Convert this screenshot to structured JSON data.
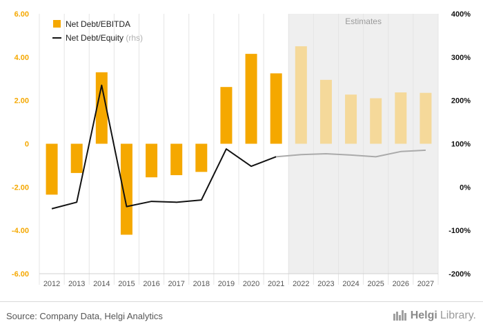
{
  "chart_data": {
    "type": "bar+line",
    "categories": [
      "2012",
      "2013",
      "2014",
      "2015",
      "2016",
      "2017",
      "2018",
      "2019",
      "2020",
      "2021",
      "2022",
      "2023",
      "2024",
      "2025",
      "2026",
      "2027"
    ],
    "estimates_from": "2022",
    "estimates_label": "Estimates",
    "series": [
      {
        "name": "Net Debt/EBITDA",
        "type": "bar",
        "axis": "left",
        "color": "#f5a800",
        "estimate_color": "#f5d99a",
        "values": [
          -2.35,
          -1.35,
          3.3,
          -4.2,
          -1.55,
          -1.45,
          -1.3,
          2.62,
          4.15,
          3.25,
          4.5,
          2.95,
          2.27,
          2.1,
          2.37,
          2.35
        ]
      },
      {
        "name": "Net Debt/Equity",
        "legend_suffix": "(rhs)",
        "type": "line",
        "axis": "right",
        "color": "#111111",
        "estimate_color": "#aaaaaa",
        "values": [
          -50,
          -35,
          235,
          -45,
          -33,
          -35,
          -30,
          88,
          48,
          70,
          75,
          77,
          74,
          70,
          82,
          85
        ]
      }
    ],
    "left_axis": {
      "ylim": [
        -6,
        6
      ],
      "ticks": [
        6,
        4,
        2,
        0,
        -2,
        -4,
        -6
      ],
      "tick_labels": [
        "6.00",
        "4.00",
        "2.00",
        "0",
        "-2.00",
        "-4.00",
        "-6.00"
      ],
      "color": "#f5a800"
    },
    "right_axis": {
      "ylim": [
        -200,
        400
      ],
      "ticks": [
        400,
        300,
        200,
        100,
        0,
        -100,
        -200
      ],
      "tick_labels": [
        "400%",
        "300%",
        "200%",
        "100%",
        "0%",
        "-100%",
        "-200%"
      ]
    },
    "legend_position": "top-left",
    "grid": "vertical"
  },
  "footer": {
    "source": "Source: Company Data, Helgi Analytics",
    "brand_prefix": "Helgi",
    "brand_suffix": "Library.",
    "brand_icon": "helgi-library-logo-icon"
  }
}
